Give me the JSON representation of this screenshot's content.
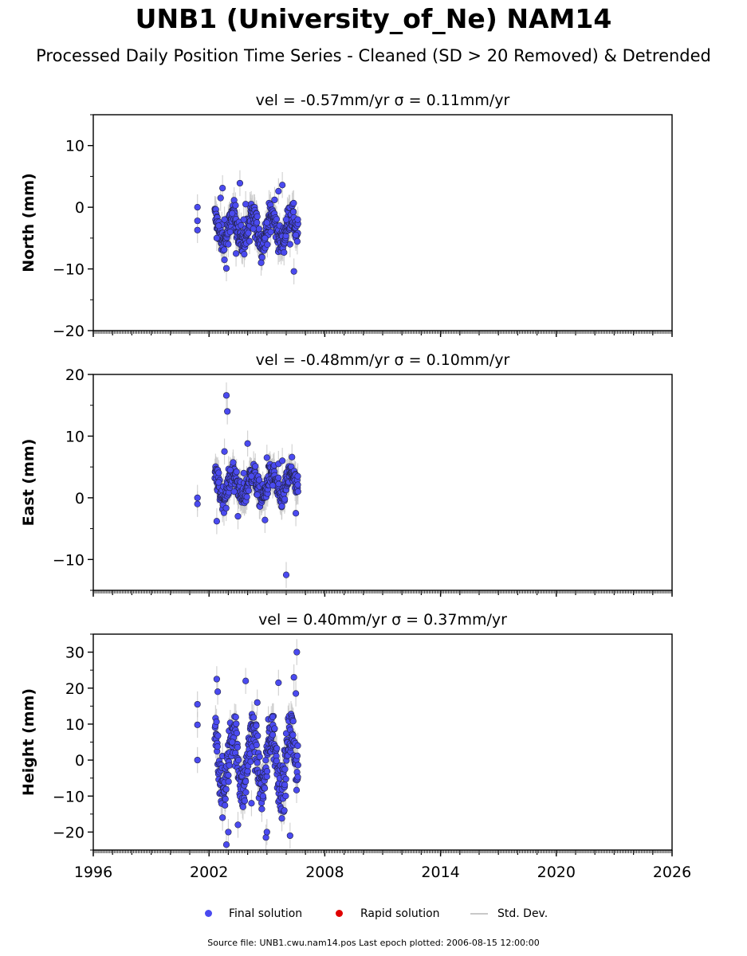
{
  "title": "UNB1 (University_of_Ne) NAM14",
  "subtitle": "Processed Daily Position Time Series - Cleaned (SD > 20 Removed) & Detrended",
  "legend": {
    "final": "Final solution",
    "rapid": "Rapid solution",
    "std": "Std. Dev."
  },
  "source_text": "Source file: UNB1.cwu.nam14.pos  Last epoch plotted: 2006-08-15 12:00:00",
  "colors": {
    "final": "#4a4af0",
    "rapid": "#e00000",
    "std": "#c9c9c9",
    "marker_edge": "#222244"
  },
  "chart_data": [
    {
      "type": "scatter",
      "title": "vel = -0.57mm/yr   σ = 0.11mm/yr",
      "ylabel": "North (mm)",
      "xlim": [
        1996,
        2026
      ],
      "ylim": [
        -20,
        15
      ],
      "yticks": [
        -20,
        -10,
        0,
        10
      ],
      "x_ticks": [
        1996,
        2002,
        2008,
        2014,
        2020,
        2026
      ],
      "show_xticklabels": false,
      "series": [
        {
          "name": "Final solution",
          "x": [
            2001.4,
            2001.4,
            2001.4,
            2002.4,
            2002.5,
            2002.6,
            2002.7,
            2002.8,
            2002.9,
            2003.0,
            2003.1,
            2003.2,
            2003.4,
            2003.6,
            2003.8,
            2003.9,
            2004.1,
            2004.3,
            2004.5,
            2004.7,
            2004.9,
            2005.0,
            2005.2,
            2005.4,
            2005.6,
            2005.8,
            2006.0,
            2006.2,
            2006.4,
            2006.5,
            2006.6
          ],
          "y": [
            0.0,
            -2.2,
            -3.7,
            -5.0,
            -3.0,
            1.5,
            3.1,
            -2.0,
            -9.9,
            -6.0,
            -4.0,
            -1.0,
            -7.5,
            3.9,
            -2.0,
            0.5,
            -5.5,
            -3.5,
            -1.5,
            -9.0,
            -5.0,
            -2.5,
            -4.0,
            1.2,
            2.6,
            3.6,
            -2.0,
            -6.0,
            -10.4,
            -4.5,
            -2.0
          ]
        },
        {
          "name": "Rapid solution",
          "x": [],
          "y": []
        }
      ],
      "data_band": {
        "x_start": 2002.3,
        "x_end": 2006.62,
        "center": -3.5,
        "amplitude": 2.2,
        "noise": 1.6
      }
    },
    {
      "type": "scatter",
      "title": "vel = -0.48mm/yr   σ = 0.10mm/yr",
      "ylabel": "East (mm)",
      "xlim": [
        1996,
        2026
      ],
      "ylim": [
        -15,
        20
      ],
      "yticks": [
        -10,
        0,
        10,
        20
      ],
      "x_ticks": [
        1996,
        2002,
        2008,
        2014,
        2020,
        2026
      ],
      "show_xticklabels": false,
      "series": [
        {
          "name": "Final solution",
          "x": [
            2001.4,
            2001.4,
            2002.4,
            2002.5,
            2002.8,
            2002.9,
            2002.95,
            2003.1,
            2003.3,
            2003.5,
            2003.8,
            2004.0,
            2004.2,
            2004.5,
            2004.9,
            2005.0,
            2005.3,
            2005.6,
            2005.8,
            2006.0,
            2006.3,
            2006.5,
            2006.6
          ],
          "y": [
            0.0,
            -1.0,
            -3.8,
            2.5,
            7.5,
            16.6,
            14.0,
            4.5,
            1.0,
            -3.0,
            4.0,
            8.8,
            3.5,
            0.5,
            -3.6,
            6.5,
            2.0,
            5.5,
            6.0,
            -12.5,
            6.6,
            -2.5,
            3.5
          ]
        },
        {
          "name": "Rapid solution",
          "x": [],
          "y": []
        }
      ],
      "data_band": {
        "x_start": 2002.3,
        "x_end": 2006.62,
        "center": 2.0,
        "amplitude": 2.0,
        "noise": 1.4
      }
    },
    {
      "type": "scatter",
      "title": "vel = 0.40mm/yr   σ = 0.37mm/yr",
      "ylabel": "Height (mm)",
      "xlim": [
        1996,
        2026
      ],
      "ylim": [
        -25,
        35
      ],
      "yticks": [
        -20,
        -10,
        0,
        10,
        20,
        30
      ],
      "x_ticks": [
        1996,
        2002,
        2008,
        2014,
        2020,
        2026
      ],
      "show_xticklabels": true,
      "series": [
        {
          "name": "Final solution",
          "x": [
            2001.4,
            2001.4,
            2001.4,
            2002.4,
            2002.45,
            2002.7,
            2002.9,
            2003.0,
            2003.2,
            2003.5,
            2003.9,
            2004.2,
            2004.5,
            2004.8,
            2004.95,
            2005.0,
            2005.3,
            2005.6,
            2005.9,
            2006.2,
            2006.4,
            2006.5,
            2006.55,
            2006.6
          ],
          "y": [
            15.5,
            9.8,
            0.0,
            22.5,
            19.0,
            -16.0,
            -23.5,
            -20.0,
            5.0,
            -18.0,
            22.0,
            -12.0,
            16.0,
            -10.0,
            -21.5,
            -20.0,
            12.0,
            21.5,
            -14.0,
            -21.0,
            23.0,
            18.5,
            30.0,
            4.0
          ]
        },
        {
          "name": "Rapid solution",
          "x": [],
          "y": []
        }
      ],
      "data_band": {
        "x_start": 2002.3,
        "x_end": 2006.62,
        "center": 0.0,
        "amplitude": 8.0,
        "noise": 5.0
      }
    }
  ]
}
